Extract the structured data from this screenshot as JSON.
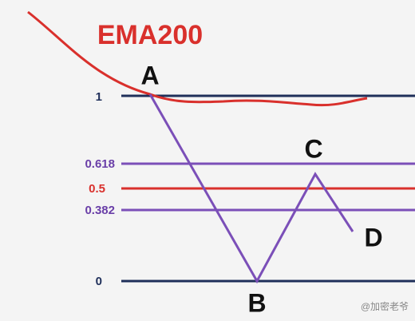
{
  "title": "EMA200",
  "levels": [
    {
      "label": "1"
    },
    {
      "label": "0.618"
    },
    {
      "label": "0.5"
    },
    {
      "label": "0.382"
    },
    {
      "label": "0"
    }
  ],
  "points": {
    "a": "A",
    "b": "B",
    "c": "C",
    "d": "D"
  },
  "watermark": "@加密老爷"
}
